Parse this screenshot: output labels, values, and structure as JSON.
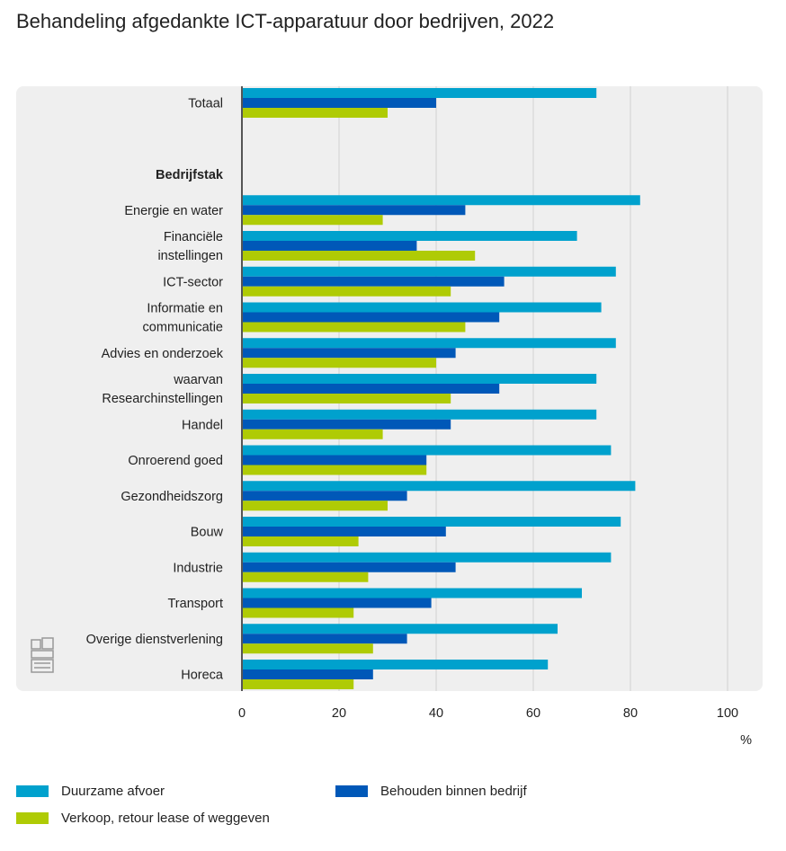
{
  "title": "Behandeling afgedankte ICT-apparatuur door bedrijven, 2022",
  "chart_data": {
    "type": "bar",
    "orientation": "horizontal",
    "title": "Behandeling afgedankte ICT-apparatuur door bedrijven, 2022",
    "xlabel": "%",
    "xlim": [
      0,
      100
    ],
    "xticks": [
      0,
      20,
      40,
      60,
      80,
      100
    ],
    "grid": true,
    "legend_position": "bottom",
    "categories": [
      {
        "label": "Totaal",
        "header": false
      },
      {
        "label": "",
        "header": false,
        "spacer": true
      },
      {
        "label": "Bedrijfstak",
        "header": true
      },
      {
        "label": "Energie en water",
        "header": false
      },
      {
        "label": "Financiële\ninstellingen",
        "header": false
      },
      {
        "label": "ICT-sector",
        "header": false
      },
      {
        "label": "Informatie en\ncommunicatie",
        "header": false
      },
      {
        "label": "Advies en onderzoek",
        "header": false
      },
      {
        "label": "waarvan\nResearchinstellingen",
        "header": false
      },
      {
        "label": "Handel",
        "header": false
      },
      {
        "label": "Onroerend goed",
        "header": false
      },
      {
        "label": "Gezondheidszorg",
        "header": false
      },
      {
        "label": "Bouw",
        "header": false
      },
      {
        "label": "Industrie",
        "header": false
      },
      {
        "label": "Transport",
        "header": false
      },
      {
        "label": "Overige dienstverlening",
        "header": false
      },
      {
        "label": "Horeca",
        "header": false
      }
    ],
    "series": [
      {
        "name": "Duurzame afvoer",
        "color": "#00a1cd",
        "values": [
          73,
          null,
          null,
          82,
          69,
          77,
          74,
          77,
          73,
          73,
          76,
          81,
          78,
          76,
          70,
          65,
          63
        ]
      },
      {
        "name": "Behouden binnen bedrijf",
        "color": "#0058b8",
        "values": [
          40,
          null,
          null,
          46,
          36,
          54,
          53,
          44,
          53,
          43,
          38,
          34,
          42,
          44,
          39,
          34,
          27
        ]
      },
      {
        "name": "Verkoop, retour lease of weggeven",
        "color": "#afcb05",
        "values": [
          30,
          null,
          null,
          29,
          48,
          43,
          46,
          40,
          43,
          29,
          38,
          30,
          24,
          26,
          23,
          27,
          23
        ]
      }
    ]
  }
}
